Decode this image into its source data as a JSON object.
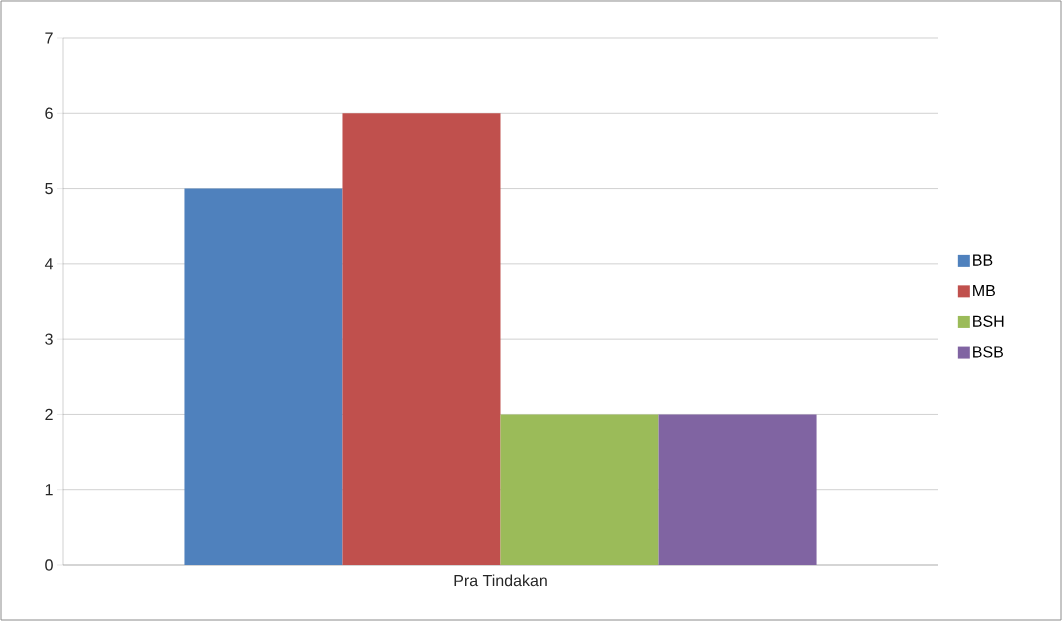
{
  "chart_data": {
    "type": "bar",
    "categories": [
      "Pra Tindakan"
    ],
    "series": [
      {
        "name": "BB",
        "color": "#4f81bd",
        "values": [
          5
        ]
      },
      {
        "name": "MB",
        "color": "#c0504d",
        "values": [
          6
        ]
      },
      {
        "name": "BSH",
        "color": "#9bbb59",
        "values": [
          2
        ]
      },
      {
        "name": "BSB",
        "color": "#8064a2",
        "values": [
          2
        ]
      }
    ],
    "ylim": [
      0,
      7
    ],
    "yticks": [
      0,
      1,
      2,
      3,
      4,
      5,
      6,
      7
    ],
    "grid": "y",
    "legend": "right"
  }
}
